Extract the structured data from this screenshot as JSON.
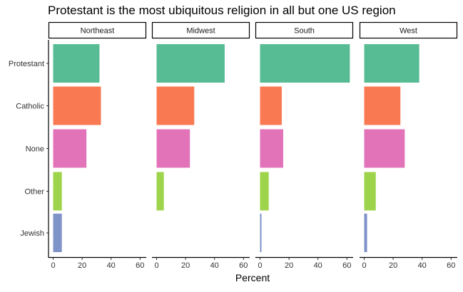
{
  "chart_data": {
    "type": "bar",
    "orientation": "horizontal",
    "title": "Protestant is the most ubiquitous religion in all but one US region",
    "xlabel": "Percent",
    "ylabel": "",
    "xlim": [
      0,
      65
    ],
    "x_ticks": [
      0,
      20,
      40,
      60
    ],
    "categories": [
      "Protestant",
      "Catholic",
      "None",
      "Other",
      "Jewish"
    ],
    "category_colors": [
      "#57BB94",
      "#F97A52",
      "#E273B9",
      "#9ED44B",
      "#7F93C8"
    ],
    "grid": false,
    "legend": "none",
    "facets": [
      {
        "name": "Northeast",
        "values": [
          32,
          33,
          23,
          6,
          6
        ]
      },
      {
        "name": "Midwest",
        "values": [
          47,
          26,
          23,
          5,
          0
        ]
      },
      {
        "name": "South",
        "values": [
          62,
          15,
          16,
          6,
          1
        ]
      },
      {
        "name": "West",
        "values": [
          38,
          25,
          28,
          8,
          2
        ]
      }
    ]
  }
}
